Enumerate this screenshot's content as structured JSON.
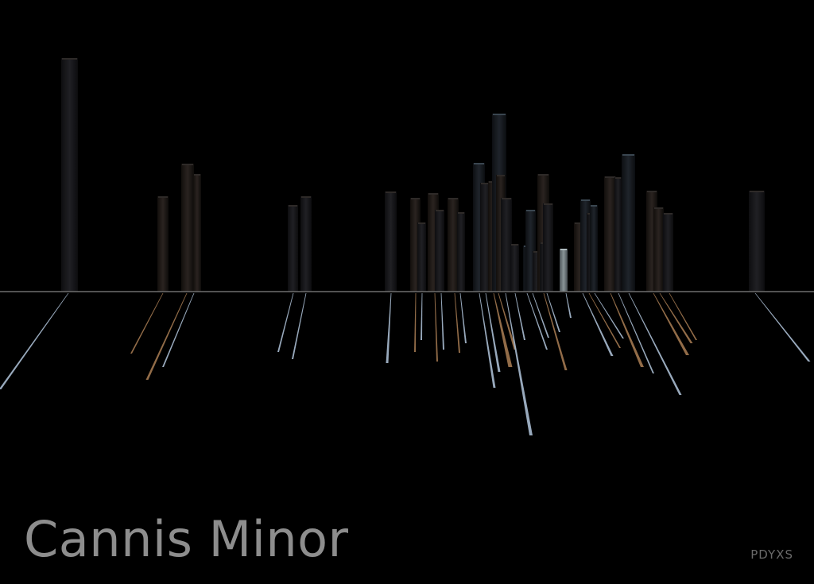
{
  "title": "Cannis Minor",
  "signature": "PDYXS",
  "colors": {
    "background": "#000000",
    "horizon": "#6e6e6e",
    "title": "#8d8d8d",
    "signature": "#6a6a6a",
    "streak_blue": "#a9bbd0",
    "streak_amber": "#a27850",
    "bar_base": "#17171a"
  }
}
